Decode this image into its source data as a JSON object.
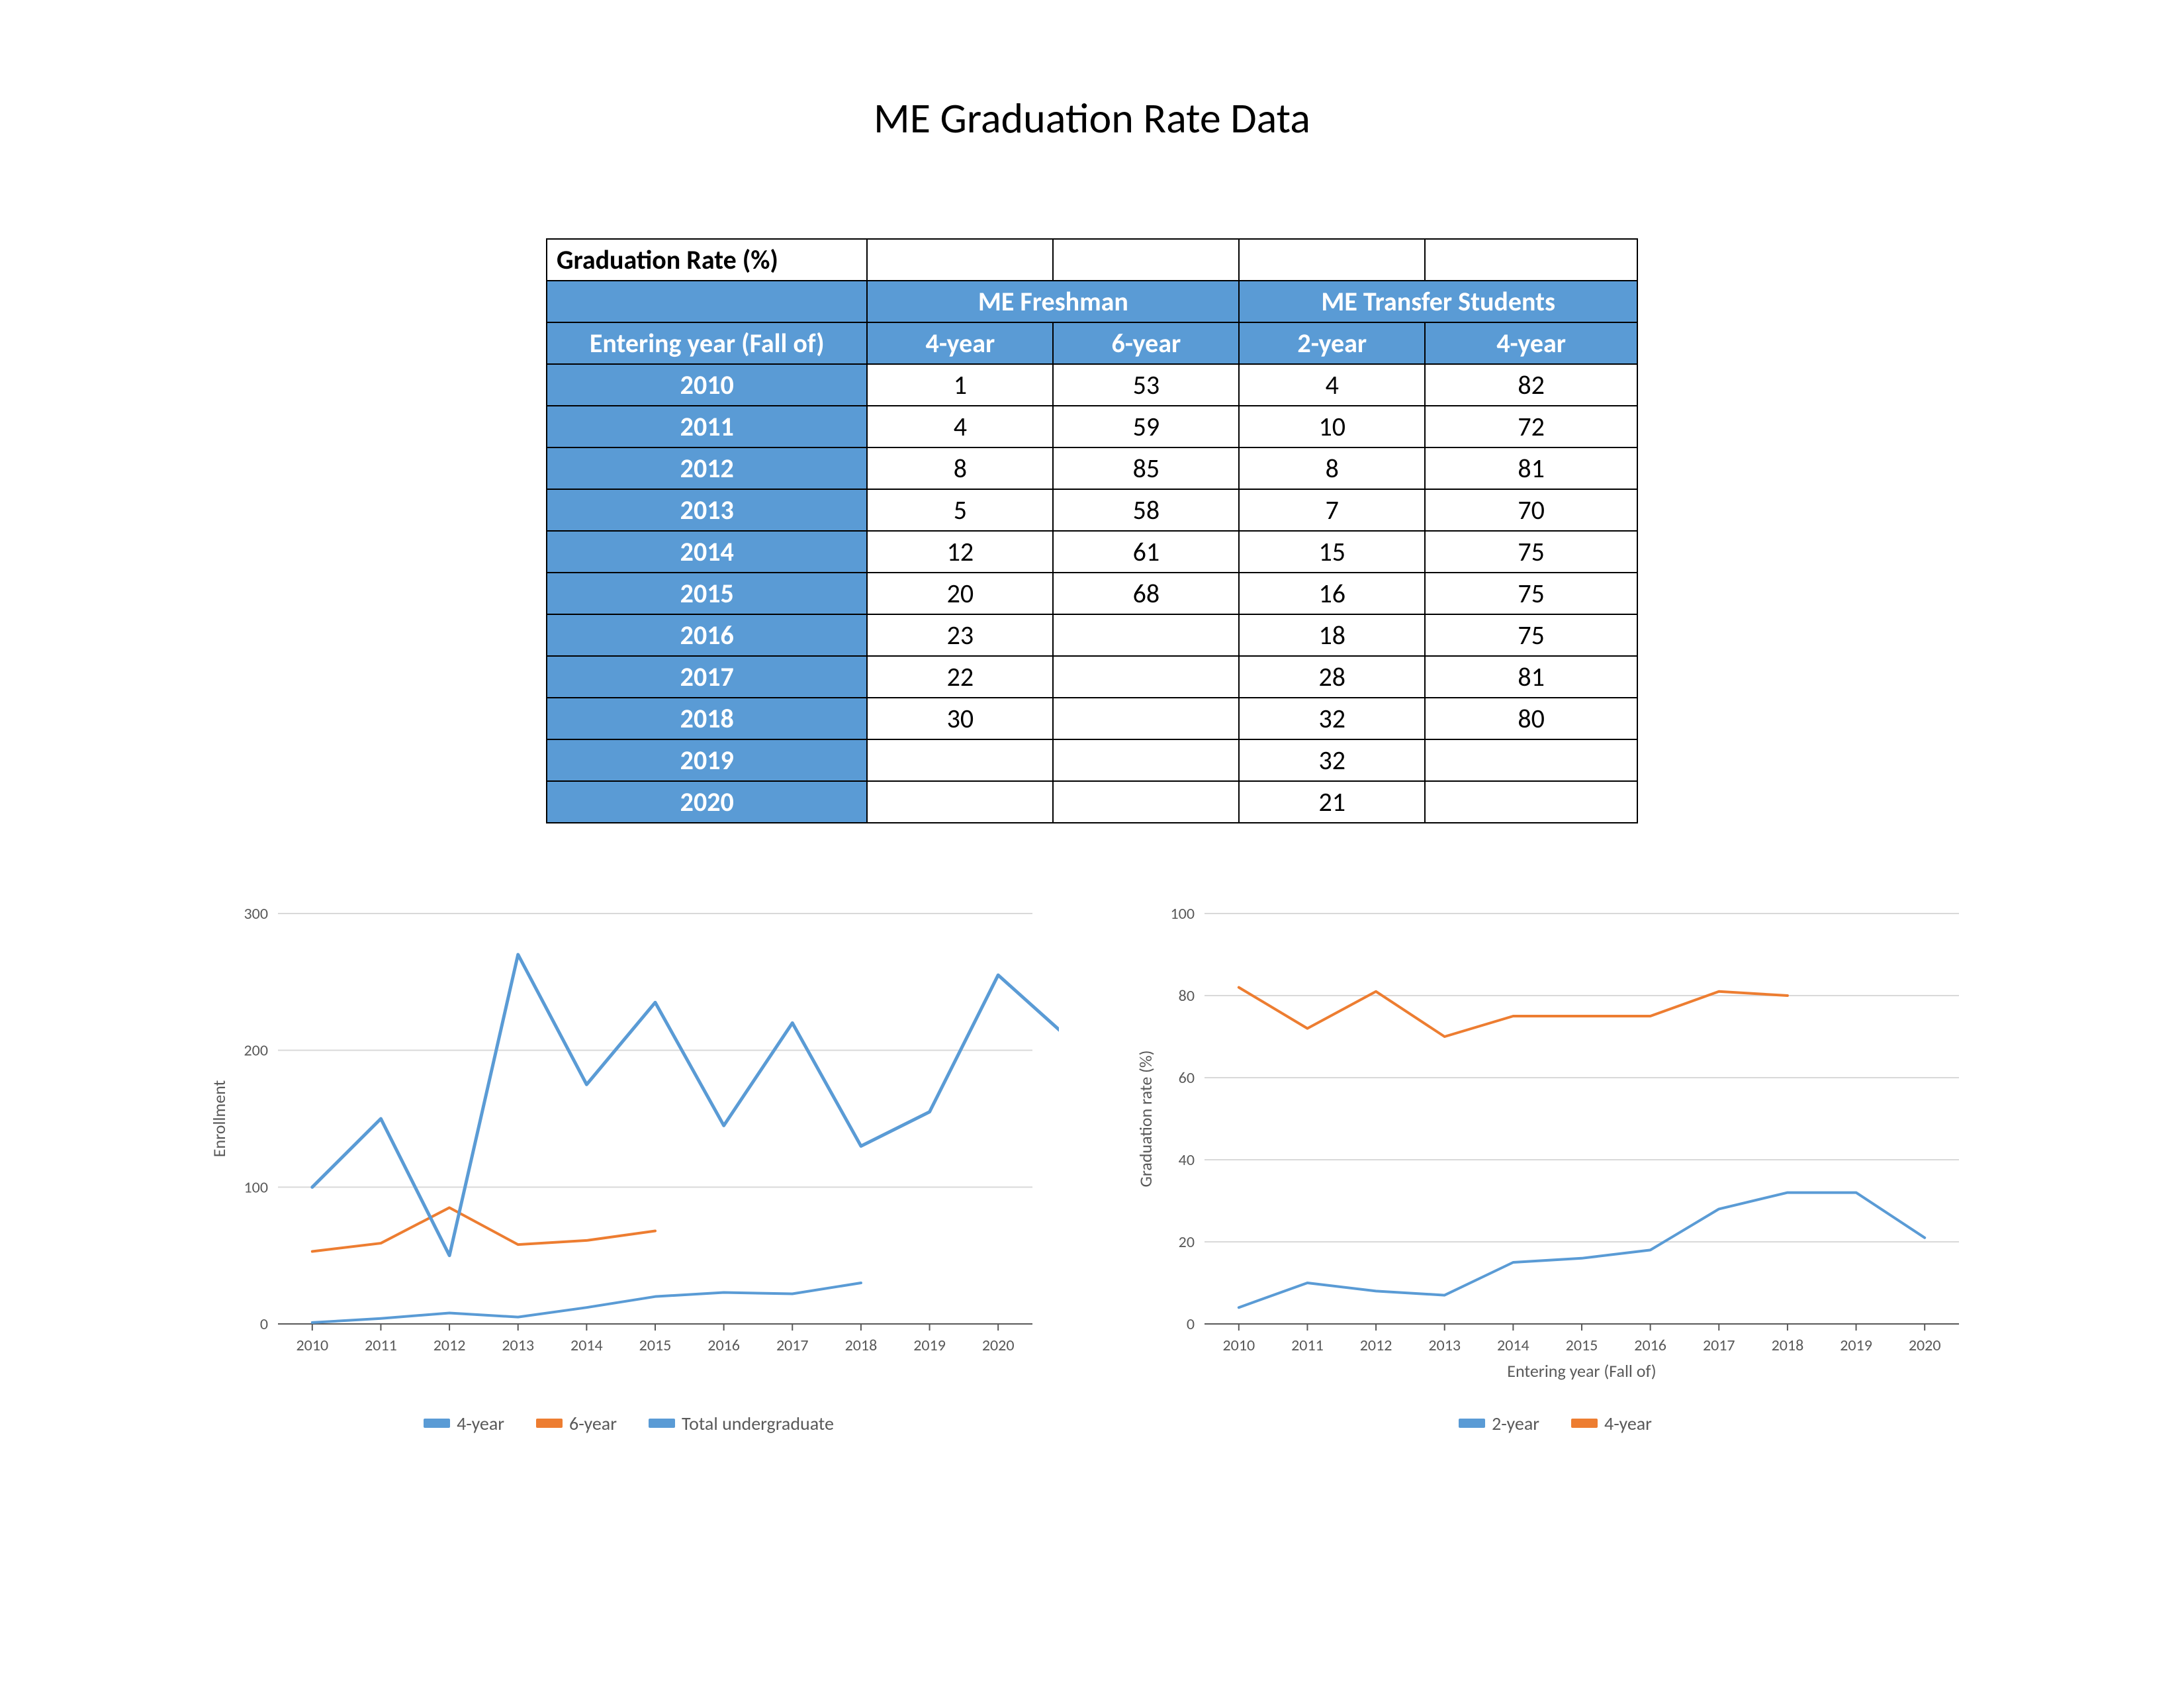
{
  "title": "ME Graduation Rate Data",
  "table": {
    "header_corner": "Graduation Rate (%)",
    "group1_label": "ME Freshman",
    "group2_label": "ME Transfer Students",
    "year_col_label": "Entering year (Fall of)",
    "subcols": [
      "4-year",
      "6-year",
      "2-year",
      "4-year"
    ],
    "rows": [
      {
        "year": "2010",
        "c": [
          "1",
          "53",
          "4",
          "82"
        ]
      },
      {
        "year": "2011",
        "c": [
          "4",
          "59",
          "10",
          "72"
        ]
      },
      {
        "year": "2012",
        "c": [
          "8",
          "85",
          "8",
          "81"
        ]
      },
      {
        "year": "2013",
        "c": [
          "5",
          "58",
          "7",
          "70"
        ]
      },
      {
        "year": "2014",
        "c": [
          "12",
          "61",
          "15",
          "75"
        ]
      },
      {
        "year": "2015",
        "c": [
          "20",
          "68",
          "16",
          "75"
        ]
      },
      {
        "year": "2016",
        "c": [
          "23",
          "",
          "18",
          "75"
        ]
      },
      {
        "year": "2017",
        "c": [
          "22",
          "",
          "28",
          "81"
        ]
      },
      {
        "year": "2018",
        "c": [
          "30",
          "",
          "32",
          "80"
        ]
      },
      {
        "year": "2019",
        "c": [
          "",
          "",
          "32",
          ""
        ]
      },
      {
        "year": "2020",
        "c": [
          "",
          "",
          "21",
          ""
        ]
      }
    ],
    "header_bg": "#5a9bd5",
    "header_fg": "#ffffff",
    "cell_bg": "#ffffff",
    "border_color": "#000000",
    "fontsize": 40
  },
  "chart_left": {
    "type": "line",
    "x_categories": [
      "2010",
      "2011",
      "2012",
      "2013",
      "2014",
      "2015",
      "2016",
      "2017",
      "2018",
      "2019",
      "2020"
    ],
    "ylabel": "Enrollment",
    "ylim": [
      0,
      300
    ],
    "ytick_step": 100,
    "series": [
      {
        "name": "4-year",
        "color": "#5a9bd5",
        "width": 4,
        "values": [
          1,
          4,
          8,
          5,
          12,
          20,
          23,
          22,
          30,
          null,
          null
        ]
      },
      {
        "name": "6-year",
        "color": "#ed7d31",
        "width": 4,
        "values": [
          53,
          59,
          85,
          58,
          61,
          68,
          null,
          null,
          null,
          null,
          null
        ]
      },
      {
        "name": "Total undergraduate",
        "color": "#5a9bd5",
        "width": 5,
        "values": [
          100,
          150,
          50,
          270,
          175,
          235,
          145,
          220,
          130,
          155,
          255,
          210
        ],
        "x_extended": true
      }
    ],
    "background_color": "#ffffff",
    "grid_color": "#d9d9d9",
    "axis_color": "#595959",
    "tick_fontsize": 24,
    "label_fontsize": 26
  },
  "chart_right": {
    "type": "line",
    "x_categories": [
      "2010",
      "2011",
      "2012",
      "2013",
      "2014",
      "2015",
      "2016",
      "2017",
      "2018",
      "2019",
      "2020"
    ],
    "ylabel": "Graduation rate (%)",
    "xlabel": "Entering year (Fall of)",
    "ylim": [
      0,
      100
    ],
    "ytick_step": 20,
    "series": [
      {
        "name": "2-year",
        "color": "#5a9bd5",
        "width": 4,
        "values": [
          4,
          10,
          8,
          7,
          15,
          16,
          18,
          28,
          32,
          32,
          21
        ]
      },
      {
        "name": "4-year",
        "color": "#ed7d31",
        "width": 4,
        "values": [
          82,
          72,
          81,
          70,
          75,
          75,
          75,
          81,
          80,
          null,
          null
        ]
      }
    ],
    "background_color": "#ffffff",
    "grid_color": "#d9d9d9",
    "axis_color": "#595959",
    "tick_fontsize": 24,
    "label_fontsize": 26
  }
}
